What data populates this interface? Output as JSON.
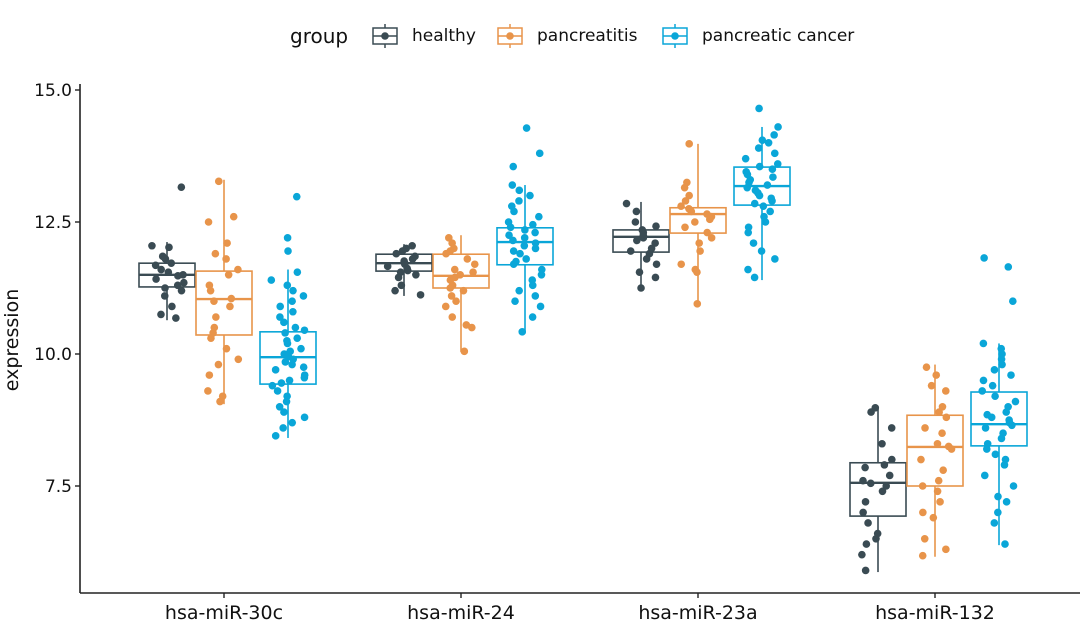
{
  "chart_data": {
    "type": "box",
    "xlabel": "",
    "ylabel": "expression",
    "ylim": [
      5.47,
      15.1
    ],
    "yticks": [
      "7.5",
      "10.0",
      "12.5",
      "15.0"
    ],
    "ytick_values": [
      7.5,
      10.0,
      12.5,
      15.0
    ],
    "grid": false,
    "legend": {
      "title": "group",
      "position": "top",
      "entries": [
        "healthy",
        "pancreatitis",
        "pancreatic cancer"
      ]
    },
    "colors": {
      "healthy": "#3a4b53",
      "pancreatitis": "#e8944a",
      "pancreatic cancer": "#0aa6d8"
    },
    "categories": [
      "hsa-miR-30c",
      "hsa-miR-24",
      "hsa-miR-23a",
      "hsa-miR-132"
    ],
    "series": [
      {
        "name": "healthy",
        "boxes": [
          {
            "whisker_low": 10.64,
            "q1": 11.27,
            "median": 11.5,
            "q3": 11.72,
            "whisker_high": 12.12,
            "points": [
              13.16,
              12.05,
              12.02,
              11.85,
              11.8,
              11.72,
              11.68,
              11.6,
              11.55,
              11.5,
              11.48,
              11.42,
              11.35,
              11.3,
              11.25,
              11.2,
              11.1,
              10.9,
              10.75,
              10.68
            ]
          },
          {
            "whisker_low": 11.1,
            "q1": 11.57,
            "median": 11.72,
            "q3": 11.89,
            "whisker_high": 12.08,
            "points": [
              12.05,
              12.0,
              11.95,
              11.9,
              11.85,
              11.8,
              11.76,
              11.72,
              11.7,
              11.66,
              11.62,
              11.58,
              11.55,
              11.5,
              11.45,
              11.3,
              11.2,
              11.12
            ]
          },
          {
            "whisker_low": 11.23,
            "q1": 11.93,
            "median": 12.22,
            "q3": 12.35,
            "whisker_high": 12.88,
            "points": [
              12.85,
              12.7,
              12.5,
              12.42,
              12.35,
              12.3,
              12.25,
              12.22,
              12.2,
              12.15,
              12.1,
              12.0,
              11.95,
              11.9,
              11.8,
              11.7,
              11.55,
              11.45,
              11.25
            ]
          },
          {
            "whisker_low": 5.87,
            "q1": 6.93,
            "median": 7.56,
            "q3": 7.94,
            "whisker_high": 9.0,
            "points": [
              8.98,
              8.9,
              8.6,
              8.3,
              8.0,
              7.9,
              7.85,
              7.7,
              7.6,
              7.55,
              7.5,
              7.4,
              7.2,
              7.0,
              6.8,
              6.6,
              6.5,
              6.4,
              6.2,
              5.9
            ]
          }
        ]
      },
      {
        "name": "pancreatitis",
        "boxes": [
          {
            "whisker_low": 9.05,
            "q1": 10.36,
            "median": 11.04,
            "q3": 11.57,
            "whisker_high": 13.3,
            "points": [
              13.27,
              12.6,
              12.5,
              12.1,
              11.9,
              11.8,
              11.6,
              11.5,
              11.3,
              11.2,
              11.05,
              11.0,
              10.9,
              10.7,
              10.5,
              10.4,
              10.3,
              10.1,
              9.9,
              9.8,
              9.6,
              9.3,
              9.2,
              9.1
            ]
          },
          {
            "whisker_low": 10.04,
            "q1": 11.25,
            "median": 11.48,
            "q3": 11.89,
            "whisker_high": 12.25,
            "points": [
              12.2,
              12.1,
              12.0,
              11.95,
              11.9,
              11.8,
              11.7,
              11.6,
              11.55,
              11.5,
              11.45,
              11.4,
              11.3,
              11.25,
              11.2,
              11.1,
              11.0,
              10.9,
              10.7,
              10.55,
              10.5,
              10.05
            ]
          },
          {
            "whisker_low": 10.95,
            "q1": 12.29,
            "median": 12.65,
            "q3": 12.77,
            "whisker_high": 13.98,
            "points": [
              13.98,
              13.25,
              13.15,
              13.0,
              12.9,
              12.8,
              12.75,
              12.7,
              12.65,
              12.6,
              12.55,
              12.5,
              12.4,
              12.3,
              12.2,
              12.1,
              11.95,
              11.7,
              11.6,
              11.55,
              10.95
            ]
          },
          {
            "whisker_low": 6.16,
            "q1": 7.5,
            "median": 8.24,
            "q3": 8.84,
            "whisker_high": 9.8,
            "points": [
              9.75,
              9.6,
              9.4,
              9.3,
              9.0,
              8.9,
              8.8,
              8.6,
              8.5,
              8.3,
              8.25,
              8.2,
              8.0,
              7.8,
              7.6,
              7.5,
              7.4,
              7.2,
              7.0,
              6.9,
              6.5,
              6.3,
              6.18
            ]
          }
        ]
      },
      {
        "name": "pancreatic cancer",
        "boxes": [
          {
            "whisker_low": 8.41,
            "q1": 9.43,
            "median": 9.94,
            "q3": 10.42,
            "whisker_high": 11.6,
            "points": [
              12.98,
              12.2,
              11.95,
              11.55,
              11.4,
              11.3,
              11.2,
              11.1,
              11.0,
              10.9,
              10.8,
              10.7,
              10.6,
              10.5,
              10.45,
              10.4,
              10.3,
              10.25,
              10.2,
              10.1,
              10.05,
              10.0,
              9.95,
              9.9,
              9.85,
              9.8,
              9.75,
              9.7,
              9.6,
              9.55,
              9.5,
              9.45,
              9.4,
              9.3,
              9.2,
              9.1,
              9.0,
              8.9,
              8.8,
              8.7,
              8.6,
              8.45
            ]
          },
          {
            "whisker_low": 10.4,
            "q1": 11.69,
            "median": 12.12,
            "q3": 12.39,
            "whisker_high": 13.2,
            "points": [
              14.28,
              13.8,
              13.55,
              13.2,
              13.1,
              13.0,
              12.9,
              12.8,
              12.7,
              12.6,
              12.5,
              12.45,
              12.4,
              12.35,
              12.3,
              12.25,
              12.2,
              12.15,
              12.1,
              12.05,
              12.0,
              11.95,
              11.9,
              11.8,
              11.75,
              11.7,
              11.6,
              11.5,
              11.4,
              11.3,
              11.2,
              11.1,
              11.0,
              10.9,
              10.7,
              10.42
            ]
          },
          {
            "whisker_low": 11.4,
            "q1": 12.82,
            "median": 13.18,
            "q3": 13.54,
            "whisker_high": 14.3,
            "points": [
              14.65,
              14.3,
              14.15,
              14.05,
              14.0,
              13.9,
              13.8,
              13.7,
              13.6,
              13.55,
              13.5,
              13.45,
              13.4,
              13.35,
              13.3,
              13.25,
              13.2,
              13.15,
              13.1,
              13.05,
              13.0,
              12.95,
              12.9,
              12.85,
              12.8,
              12.7,
              12.6,
              12.5,
              12.4,
              12.3,
              12.1,
              11.95,
              11.8,
              11.6,
              11.45
            ]
          },
          {
            "whisker_low": 6.38,
            "q1": 8.26,
            "median": 8.67,
            "q3": 9.28,
            "whisker_high": 10.2,
            "points": [
              11.82,
              11.65,
              11.0,
              10.2,
              10.1,
              10.0,
              9.9,
              9.8,
              9.7,
              9.6,
              9.5,
              9.4,
              9.3,
              9.2,
              9.1,
              9.0,
              8.9,
              8.85,
              8.8,
              8.75,
              8.7,
              8.65,
              8.6,
              8.5,
              8.4,
              8.3,
              8.2,
              8.1,
              8.0,
              7.9,
              7.7,
              7.5,
              7.3,
              7.2,
              7.0,
              6.8,
              6.4
            ]
          }
        ]
      }
    ]
  }
}
